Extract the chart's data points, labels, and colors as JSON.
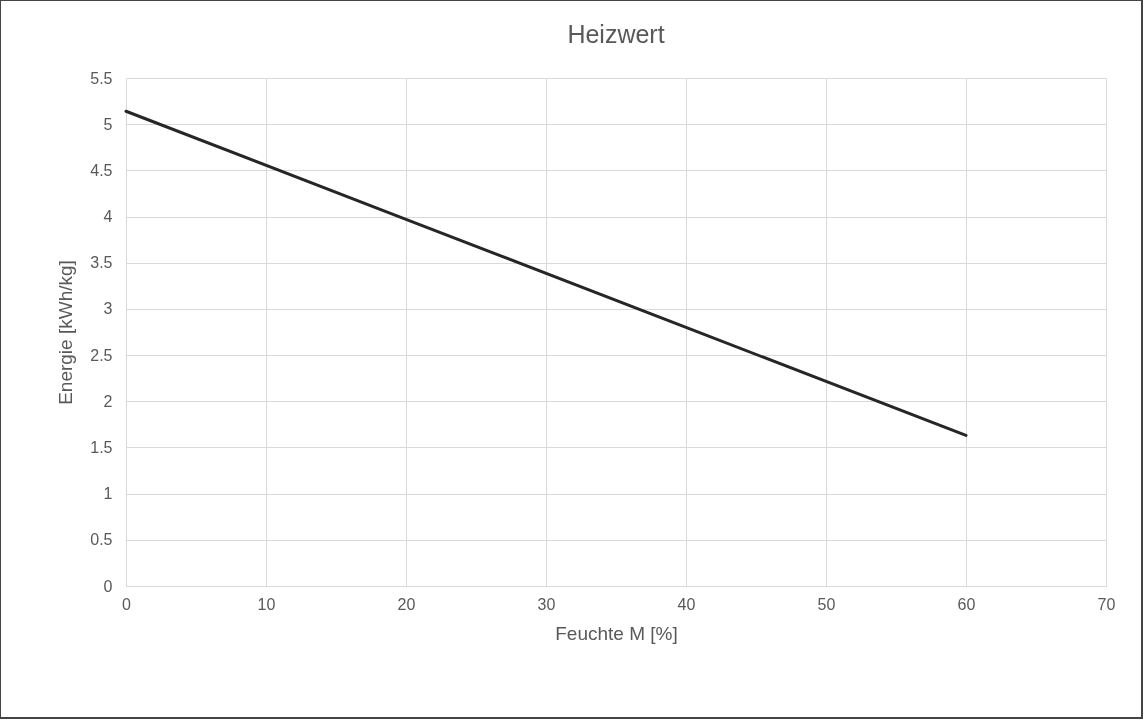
{
  "chart_data": {
    "type": "line",
    "title": "Heizwert",
    "xlabel": "Feuchte M [%]",
    "ylabel": "Energie [kWh/kg]",
    "x": [
      0,
      20,
      40,
      60
    ],
    "series": [
      {
        "color": "#262626",
        "values": [
          5.14,
          3.97,
          2.8,
          1.63
        ]
      }
    ],
    "xlim": [
      0,
      70
    ],
    "xticks": [
      0,
      10,
      20,
      30,
      40,
      50,
      60,
      70
    ],
    "ylim": [
      0,
      5.5
    ],
    "yticks": [
      0,
      0.5,
      1,
      1.5,
      2,
      2.5,
      3,
      3.5,
      4,
      4.5,
      5,
      5.5
    ],
    "grid": true,
    "legend": false,
    "marker": "none",
    "line_style": "solid"
  }
}
